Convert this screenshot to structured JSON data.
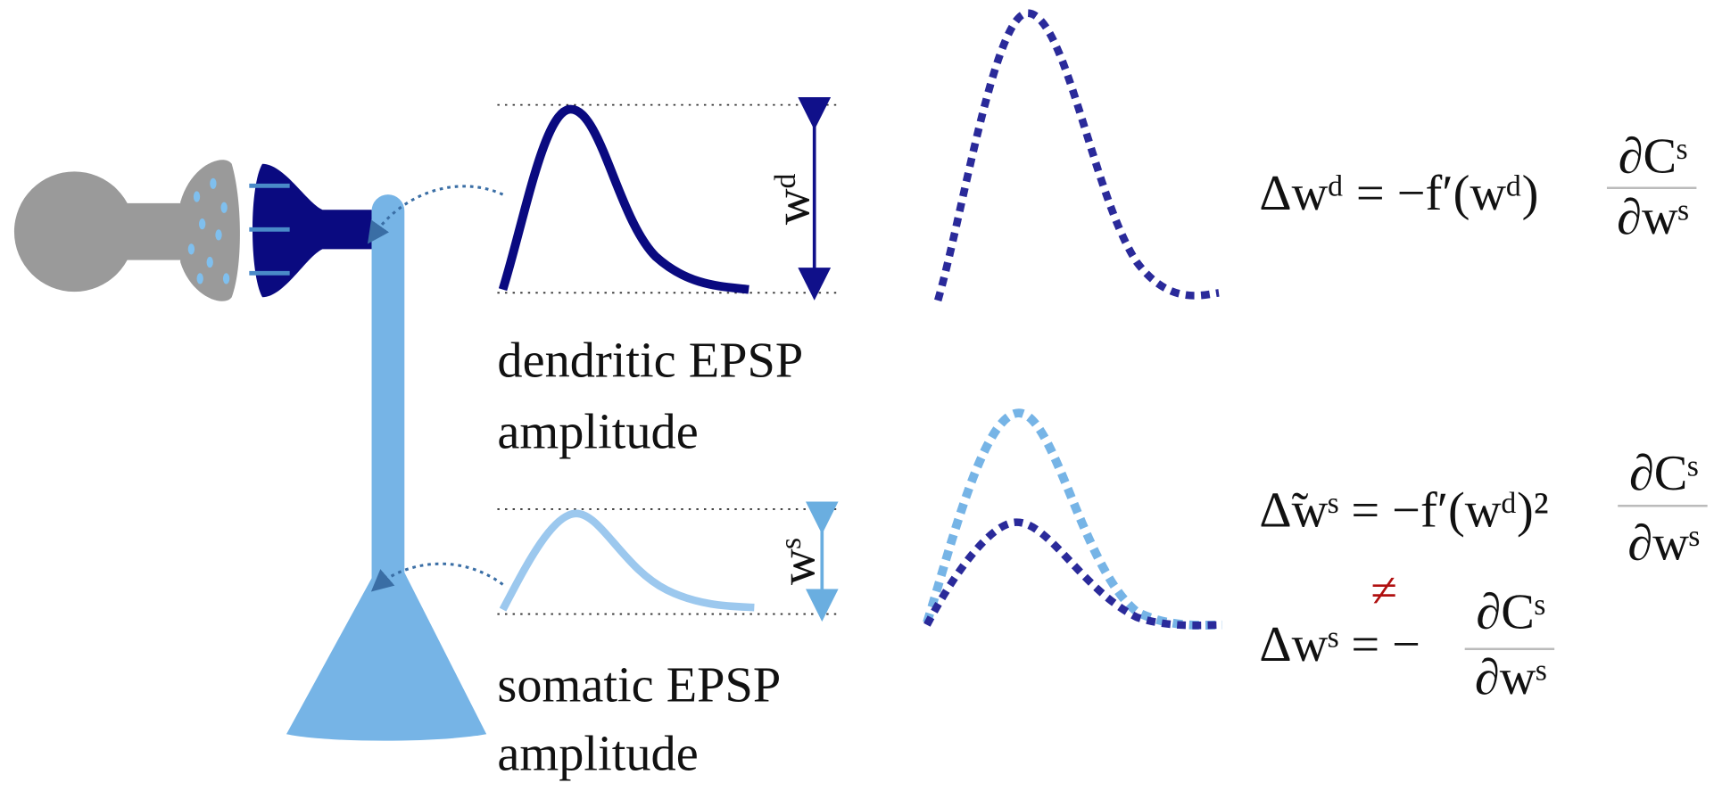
{
  "labels": {
    "dendritic_title": "dendritic EPSP",
    "dendritic_sub": "amplitude",
    "somatic_title": "somatic EPSP",
    "somatic_sub": "amplitude",
    "w_d": "wᵈ",
    "w_s": "wˢ"
  },
  "equations": [
    {
      "lhs": "Δwᵈ = −f′(wᵈ)",
      "numerator": "∂Cˢ",
      "denominator": "∂wˢ"
    },
    {
      "lhs": "Δ̃wˢ = −f′(wᵈ)²",
      "numerator": "∂Cˢ",
      "denominator": "∂wˢ"
    },
    {
      "lhs": "Δwˢ = −",
      "numerator": "∂Cˢ",
      "denominator": "∂wˢ"
    }
  ],
  "not_equal": "≠"
}
